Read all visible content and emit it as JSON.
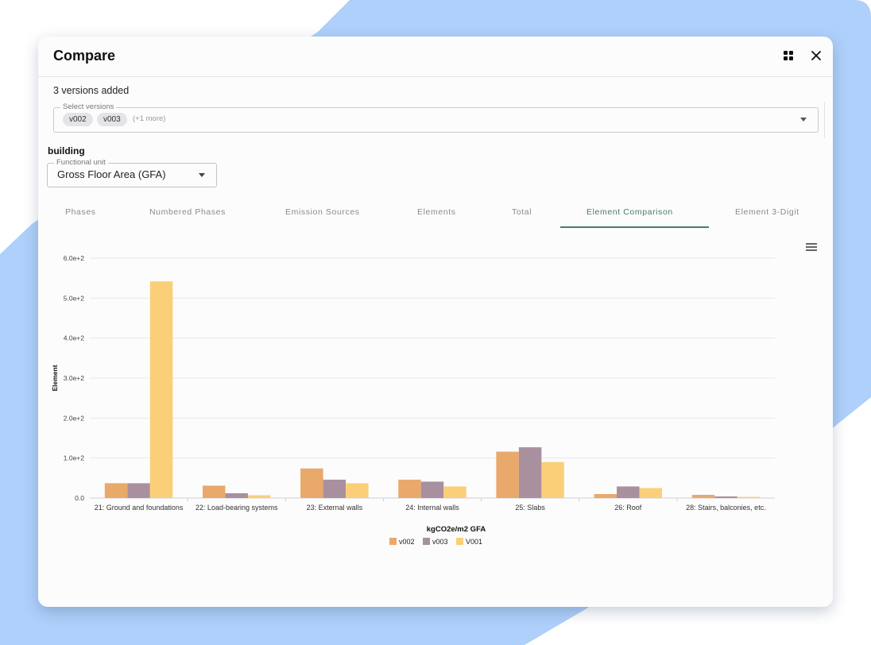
{
  "dialog": {
    "title": "Compare",
    "versions_count": "3 versions added",
    "select_versions": {
      "label": "Select versions",
      "chips": [
        "v002",
        "v003"
      ],
      "more": "(+1 more)"
    },
    "section_label": "building",
    "functional_unit": {
      "label": "Functional unit",
      "value": "Gross Floor Area (GFA)"
    },
    "tabs": [
      {
        "label": "Phases",
        "active": false
      },
      {
        "label": "Numbered Phases",
        "active": false
      },
      {
        "label": "Emission Sources",
        "active": false
      },
      {
        "label": "Elements",
        "active": false
      },
      {
        "label": "Total",
        "active": false
      },
      {
        "label": "Element Comparison",
        "active": true
      },
      {
        "label": "Element 3-Digit",
        "active": false
      }
    ]
  },
  "icons": {
    "header_layout": "grid-icon",
    "header_close": "close-icon",
    "chart_menu": "hamburger-menu-icon"
  },
  "colors": {
    "background_blob": "#aed0fa",
    "accent_tab": "#4a7a70",
    "v002": "#e9a96a",
    "v003": "#a8909f",
    "V001": "#fbcf78"
  },
  "chart_data": {
    "type": "bar",
    "xlabel": "kgCO2e/m2 GFA",
    "ylabel": "Element",
    "ylim": [
      0,
      600
    ],
    "yticks": [
      "0.0",
      "1.0e+2",
      "2.0e+2",
      "3.0e+2",
      "4.0e+2",
      "5.0e+2",
      "6.0e+2"
    ],
    "grid": true,
    "legend_position": "bottom",
    "categories": [
      "21: Ground and foundations",
      "22: Load-bearing systems",
      "23: External walls",
      "24: Internal walls",
      "25: Slabs",
      "26: Roof",
      "28: Stairs, balconies, etc."
    ],
    "series": [
      {
        "name": "v002",
        "color": "#e9a96a",
        "values": [
          37,
          31,
          74,
          46,
          116,
          10,
          8
        ]
      },
      {
        "name": "v003",
        "color": "#a8909f",
        "values": [
          37,
          12,
          46,
          41,
          127,
          29,
          4
        ]
      },
      {
        "name": "V001",
        "color": "#fbcf78",
        "values": [
          542,
          7,
          37,
          29,
          90,
          25,
          3
        ]
      }
    ]
  }
}
